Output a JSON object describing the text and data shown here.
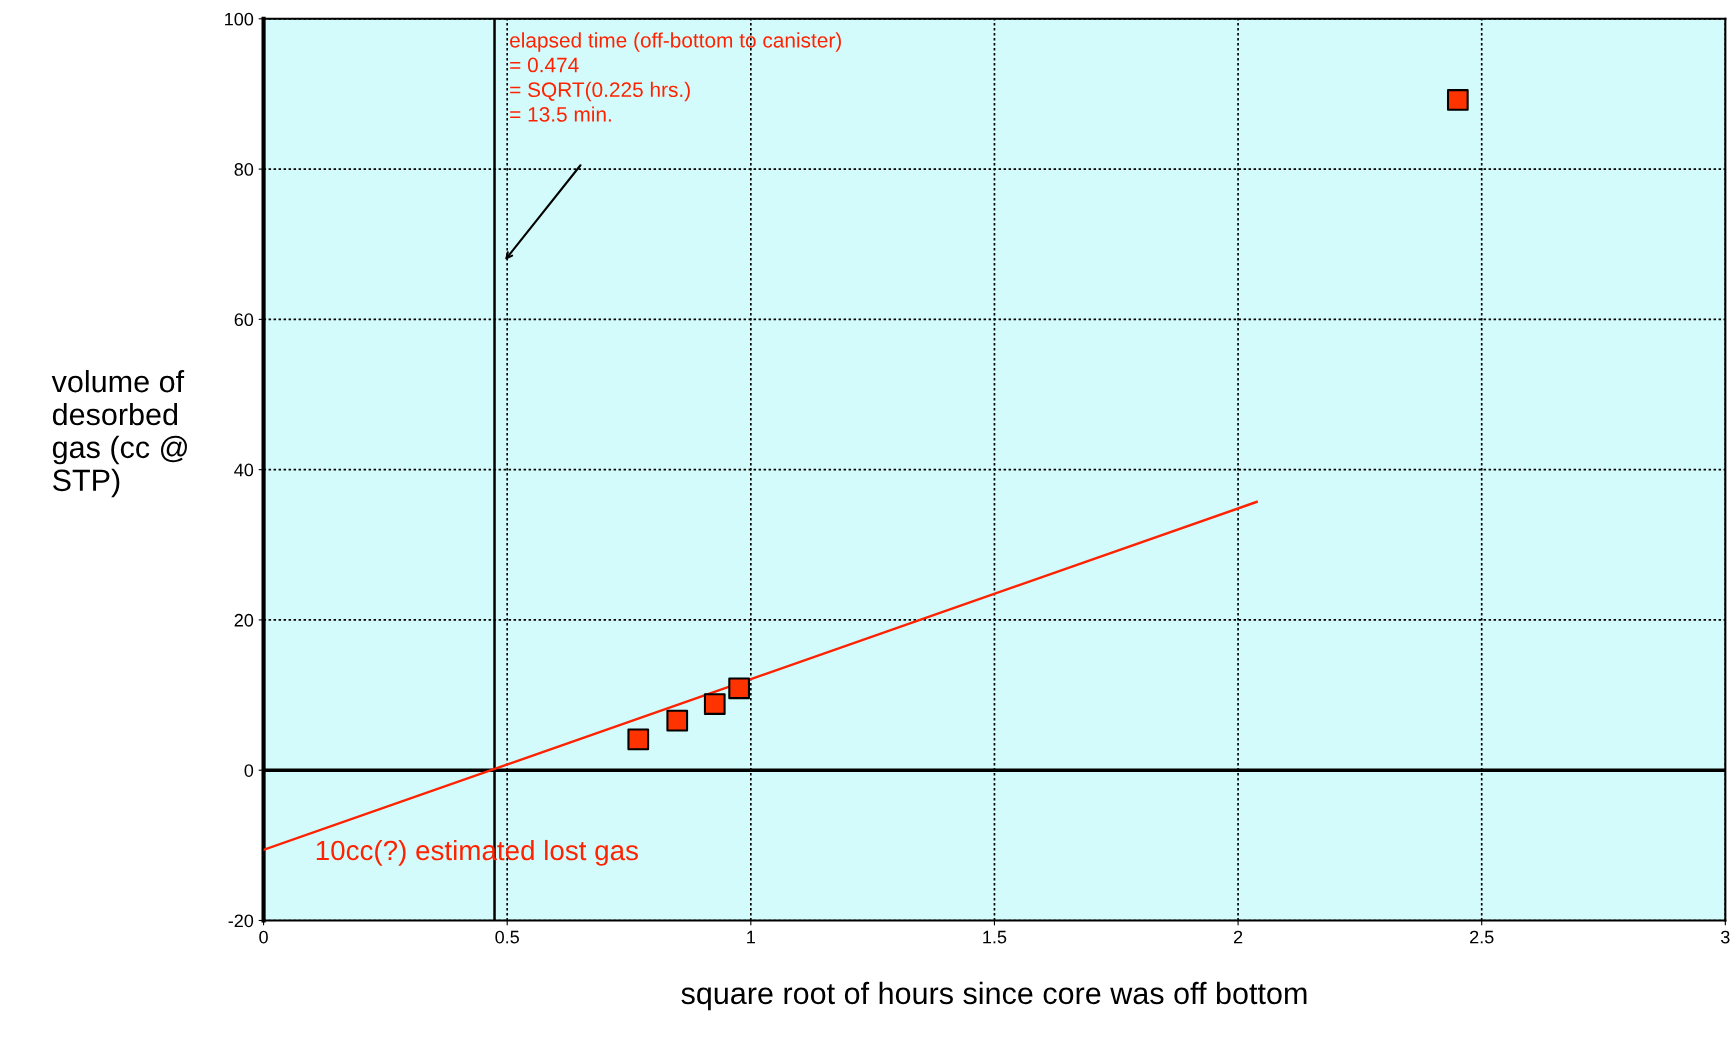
{
  "chart_data": {
    "type": "scatter",
    "xlabel": "square root of hours since core was off bottom",
    "ylabel": "volume of\ndesorbed\ngas (cc @\nSTP)",
    "x": [
      0.769,
      0.849,
      0.926,
      0.976,
      2.451
    ],
    "series": [
      {
        "color": "#ff3300",
        "values": [
          4.1,
          6.6,
          8.8,
          10.9,
          89.2
        ],
        "marker": "square"
      },
      {
        "type": "line",
        "color": "#ff2200",
        "x": [
          0,
          2.038
        ],
        "values": [
          -10.6,
          35.7
        ],
        "marker": "none"
      }
    ],
    "xlim": [
      0,
      3
    ],
    "xticks": [
      0,
      0.5,
      1,
      1.5,
      2,
      2.5,
      3
    ],
    "ylim": [
      -20,
      100
    ],
    "yticks": [
      -20,
      0,
      20,
      40,
      60,
      80,
      100
    ],
    "grid": true,
    "legend": false,
    "ref_lines": [
      {
        "axis": "x",
        "value": 0.474,
        "color": "#000000",
        "line_style": "solid"
      },
      {
        "axis": "y",
        "value": 0,
        "color": "#000000",
        "line_style": "solid"
      }
    ],
    "annotations": [
      "elapsed time (off-bottom to canister)\n= 0.474\n= SQRT(0.225 hrs.)\n= 13.5 min.",
      "10cc(?) estimated lost gas"
    ]
  }
}
